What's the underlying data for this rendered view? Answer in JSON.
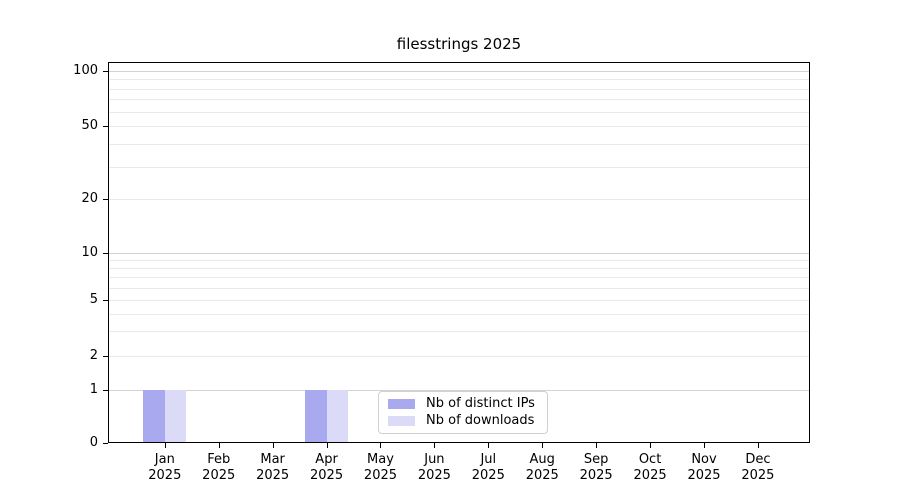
{
  "window": {
    "background": "#ffffff"
  },
  "chart_data": {
    "type": "bar",
    "title": "filesstrings 2025",
    "categories": [
      {
        "month": "Jan",
        "year": "2025"
      },
      {
        "month": "Feb",
        "year": "2025"
      },
      {
        "month": "Mar",
        "year": "2025"
      },
      {
        "month": "Apr",
        "year": "2025"
      },
      {
        "month": "May",
        "year": "2025"
      },
      {
        "month": "Jun",
        "year": "2025"
      },
      {
        "month": "Jul",
        "year": "2025"
      },
      {
        "month": "Aug",
        "year": "2025"
      },
      {
        "month": "Sep",
        "year": "2025"
      },
      {
        "month": "Oct",
        "year": "2025"
      },
      {
        "month": "Nov",
        "year": "2025"
      },
      {
        "month": "Dec",
        "year": "2025"
      }
    ],
    "series": [
      {
        "name": "Nb of distinct IPs",
        "color": "#a9a9f0",
        "values": [
          1,
          0,
          0,
          1,
          0,
          0,
          0,
          0,
          0,
          0,
          0,
          0
        ]
      },
      {
        "name": "Nb of downloads",
        "color": "#dbdbf8",
        "values": [
          1,
          0,
          0,
          1,
          0,
          0,
          0,
          0,
          0,
          0,
          0,
          0
        ]
      }
    ],
    "y_axis": {
      "scale": "symlog",
      "range": [
        0,
        100
      ],
      "ticks": [
        {
          "value": 0,
          "label": "0"
        },
        {
          "value": 1,
          "label": "1"
        },
        {
          "value": 2,
          "label": "2"
        },
        {
          "value": 5,
          "label": "5"
        },
        {
          "value": 10,
          "label": "10"
        },
        {
          "value": 20,
          "label": "20"
        },
        {
          "value": 50,
          "label": "50"
        },
        {
          "value": 100,
          "label": "100"
        }
      ],
      "minor_ticks": [
        3,
        4,
        6,
        7,
        8,
        9,
        30,
        40,
        60,
        70,
        80,
        90
      ]
    },
    "legend": {
      "position": "lower center"
    },
    "grid": {
      "on": true,
      "major_color": "#d3d3d3",
      "minor_color": "#eaeaea"
    }
  }
}
